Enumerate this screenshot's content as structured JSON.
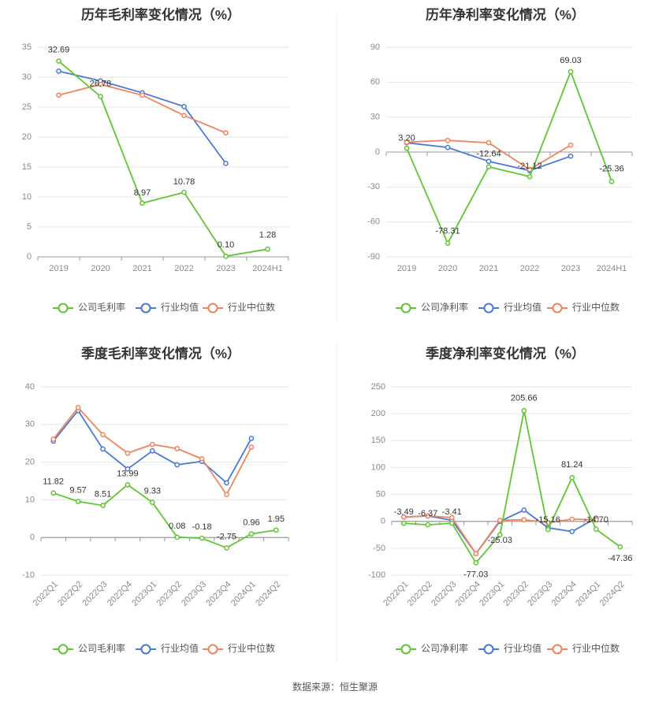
{
  "source": "数据来源：恒生聚源",
  "chart_data": [
    {
      "type": "line",
      "title": "历年毛利率变化情况（%）",
      "categories": [
        "2019",
        "2020",
        "2021",
        "2022",
        "2023",
        "2024H1"
      ],
      "ylim": [
        0,
        35
      ],
      "yticks": [
        0,
        5,
        10,
        15,
        20,
        25,
        30,
        35
      ],
      "grid": true,
      "legend_position": "bottom",
      "series": [
        {
          "name": "公司毛利率",
          "color": "#5ec632",
          "labeled": true,
          "values": [
            32.69,
            26.78,
            8.97,
            10.78,
            0.1,
            1.28
          ],
          "labels": [
            "32.69",
            "26.78",
            "8.97",
            "10.78",
            "0.10",
            "1.28"
          ]
        },
        {
          "name": "行业均值",
          "color": "#4a78d8",
          "labeled": false,
          "values": [
            31.0,
            29.4,
            27.4,
            25.1,
            15.6,
            null
          ]
        },
        {
          "name": "行业中位数",
          "color": "#f0845c",
          "labeled": false,
          "values": [
            27.0,
            28.8,
            27.0,
            23.6,
            20.7,
            null
          ]
        }
      ]
    },
    {
      "type": "line",
      "title": "历年净利率变化情况（%）",
      "categories": [
        "2019",
        "2020",
        "2021",
        "2022",
        "2023",
        "2024H1"
      ],
      "ylim": [
        -90,
        90
      ],
      "yticks": [
        -90,
        -60,
        -30,
        0,
        30,
        60,
        90
      ],
      "grid": true,
      "legend_position": "bottom",
      "series": [
        {
          "name": "公司净利率",
          "color": "#5ec632",
          "labeled": true,
          "values": [
            3.2,
            -78.31,
            -12.64,
            -21.12,
            69.03,
            -25.36
          ],
          "labels": [
            "3.20",
            "-78.31",
            "-12.64",
            "-21.12",
            "69.03",
            "-25.36"
          ]
        },
        {
          "name": "行业均值",
          "color": "#4a78d8",
          "labeled": false,
          "values": [
            8.0,
            4.0,
            -8.0,
            -16.0,
            -3.5,
            null
          ]
        },
        {
          "name": "行业中位数",
          "color": "#f0845c",
          "labeled": false,
          "values": [
            8.5,
            10.0,
            8.0,
            -15.0,
            6.0,
            null
          ]
        }
      ]
    },
    {
      "type": "line",
      "title": "季度毛利率变化情况（%）",
      "categories": [
        "2022Q1",
        "2022Q2",
        "2022Q3",
        "2022Q4",
        "2023Q1",
        "2023Q2",
        "2023Q3",
        "2023Q4",
        "2024Q1",
        "2024Q2"
      ],
      "ylim": [
        -10,
        40
      ],
      "yticks": [
        -10,
        0,
        10,
        20,
        30,
        40
      ],
      "grid": true,
      "legend_position": "bottom",
      "series": [
        {
          "name": "公司毛利率",
          "color": "#5ec632",
          "labeled": true,
          "values": [
            11.82,
            9.57,
            8.51,
            13.99,
            9.33,
            0.08,
            -0.18,
            -2.75,
            0.96,
            1.95
          ],
          "labels": [
            "11.82",
            "9.57",
            "8.51",
            "13.99",
            "9.33",
            "0.08",
            "-0.18",
            "-2.75",
            "0.96",
            "1.95"
          ]
        },
        {
          "name": "行业均值",
          "color": "#4a78d8",
          "labeled": false,
          "values": [
            25.6,
            33.7,
            23.5,
            18.2,
            23.0,
            19.3,
            20.2,
            14.5,
            26.3,
            null
          ]
        },
        {
          "name": "行业中位数",
          "color": "#f0845c",
          "labeled": false,
          "values": [
            26.1,
            34.5,
            27.3,
            22.4,
            24.7,
            23.6,
            20.9,
            11.4,
            24.0,
            null
          ]
        }
      ]
    },
    {
      "type": "line",
      "title": "季度净利率变化情况（%）",
      "categories": [
        "2022Q1",
        "2022Q2",
        "2022Q3",
        "2022Q4",
        "2023Q1",
        "2023Q2",
        "2023Q3",
        "2023Q4",
        "2024Q1",
        "2024Q2"
      ],
      "ylim": [
        -100,
        250
      ],
      "yticks": [
        -100,
        -50,
        0,
        50,
        100,
        150,
        200,
        250
      ],
      "grid": true,
      "legend_position": "bottom",
      "series": [
        {
          "name": "公司净利率",
          "color": "#5ec632",
          "labeled": true,
          "values": [
            -3.49,
            -6.37,
            -3.41,
            -77.03,
            -25.03,
            205.66,
            -15.16,
            81.24,
            -14.7,
            -47.36
          ],
          "labels": [
            "-3.49",
            "-6.37",
            "-3.41",
            "-77.03",
            "-25.03",
            "205.66",
            "-15.16",
            "81.24",
            "-14.70",
            "-47.36"
          ]
        },
        {
          "name": "行业均值",
          "color": "#4a78d8",
          "labeled": false,
          "values": [
            8.0,
            10.0,
            2.0,
            -60.0,
            0.0,
            21.0,
            -12.0,
            -19.0,
            6.0,
            null
          ]
        },
        {
          "name": "行业中位数",
          "color": "#f0845c",
          "labeled": false,
          "values": [
            8.0,
            10.0,
            7.0,
            -60.0,
            2.0,
            3.0,
            -2.0,
            4.0,
            3.0,
            null
          ]
        }
      ]
    }
  ]
}
